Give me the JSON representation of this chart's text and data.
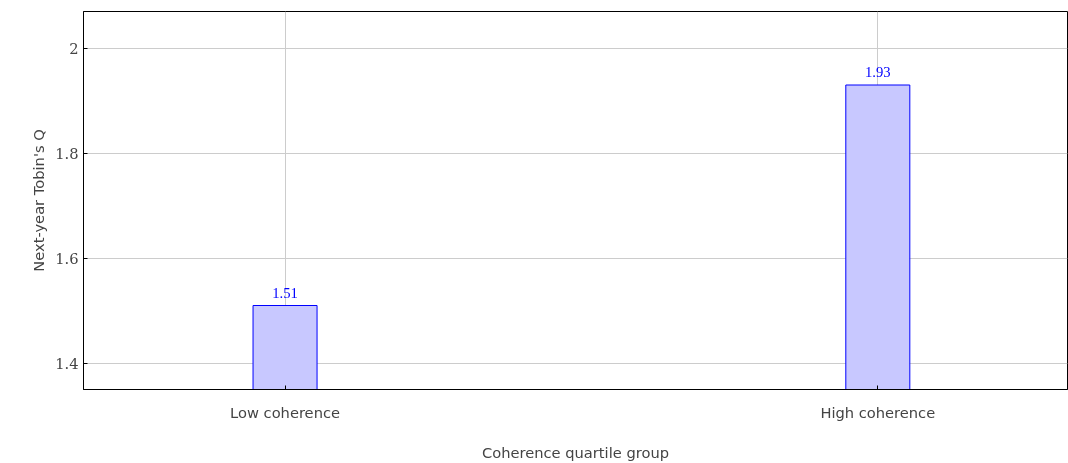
{
  "chart_data": {
    "type": "bar",
    "xlabel": "Coherence quartile group",
    "ylabel": "Next-year Tobin's Q",
    "categories": [
      "Low coherence",
      "High coherence"
    ],
    "values": [
      1.51,
      1.93
    ],
    "color": "#c8c8ff",
    "ylim": [
      1.35,
      2.07
    ],
    "yticks": [
      1.4,
      1.6,
      1.8,
      {
        "value": 2,
        "label": "2"
      }
    ],
    "grid": true,
    "data_labels": true
  }
}
